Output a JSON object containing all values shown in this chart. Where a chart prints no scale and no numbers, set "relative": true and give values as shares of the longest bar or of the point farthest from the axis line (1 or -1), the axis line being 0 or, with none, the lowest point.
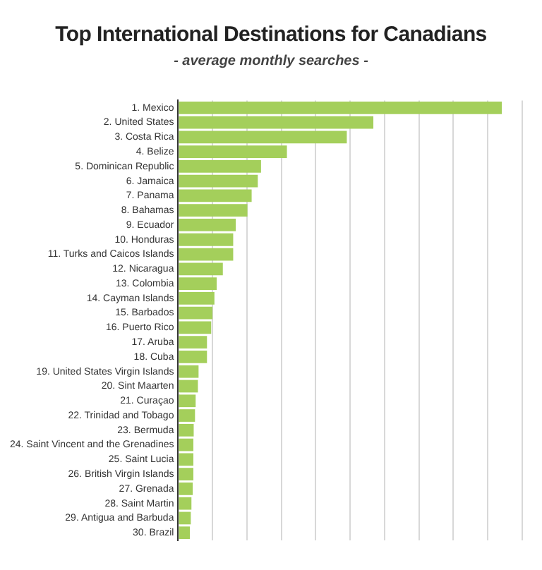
{
  "chart_data": {
    "type": "bar",
    "orientation": "horizontal",
    "relative": true,
    "grid": "x",
    "legend": false,
    "title": "Top International Destinations for Canadians",
    "subtitle": "- average monthly searches -",
    "color": "#a4cf5b",
    "categories": [
      "1. Mexico",
      "2. United States",
      "3. Costa Rica",
      "4. Belize",
      "5. Dominican Republic",
      "6. Jamaica",
      "7. Panama",
      "8. Bahamas",
      "9. Ecuador",
      "10. Honduras",
      "11. Turks and Caicos Islands",
      "12. Nicaragua",
      "13. Colombia",
      "14. Cayman Islands",
      "15. Barbados",
      "16. Puerto Rico",
      "17. Aruba",
      "18. Cuba",
      "19. United States Virgin Islands",
      "20. Sint Maarten",
      "21. Curaçao",
      "22. Trinidad and Tobago",
      "23. Bermuda",
      "24. Saint Vincent and the Grenadines",
      "25. Saint Lucia",
      "26. British Virgin Islands",
      "27. Grenada",
      "28. Saint Martin",
      "29. Antigua and Barbuda",
      "30. Brazil"
    ],
    "values": [
      1,
      0.603,
      0.521,
      0.336,
      0.256,
      0.246,
      0.227,
      0.214,
      0.178,
      0.17,
      0.17,
      0.138,
      0.119,
      0.112,
      0.106,
      0.102,
      0.089,
      0.089,
      0.063,
      0.061,
      0.054,
      0.052,
      0.048,
      0.047,
      0.047,
      0.047,
      0.045,
      0.041,
      0.039,
      0.036
    ]
  }
}
